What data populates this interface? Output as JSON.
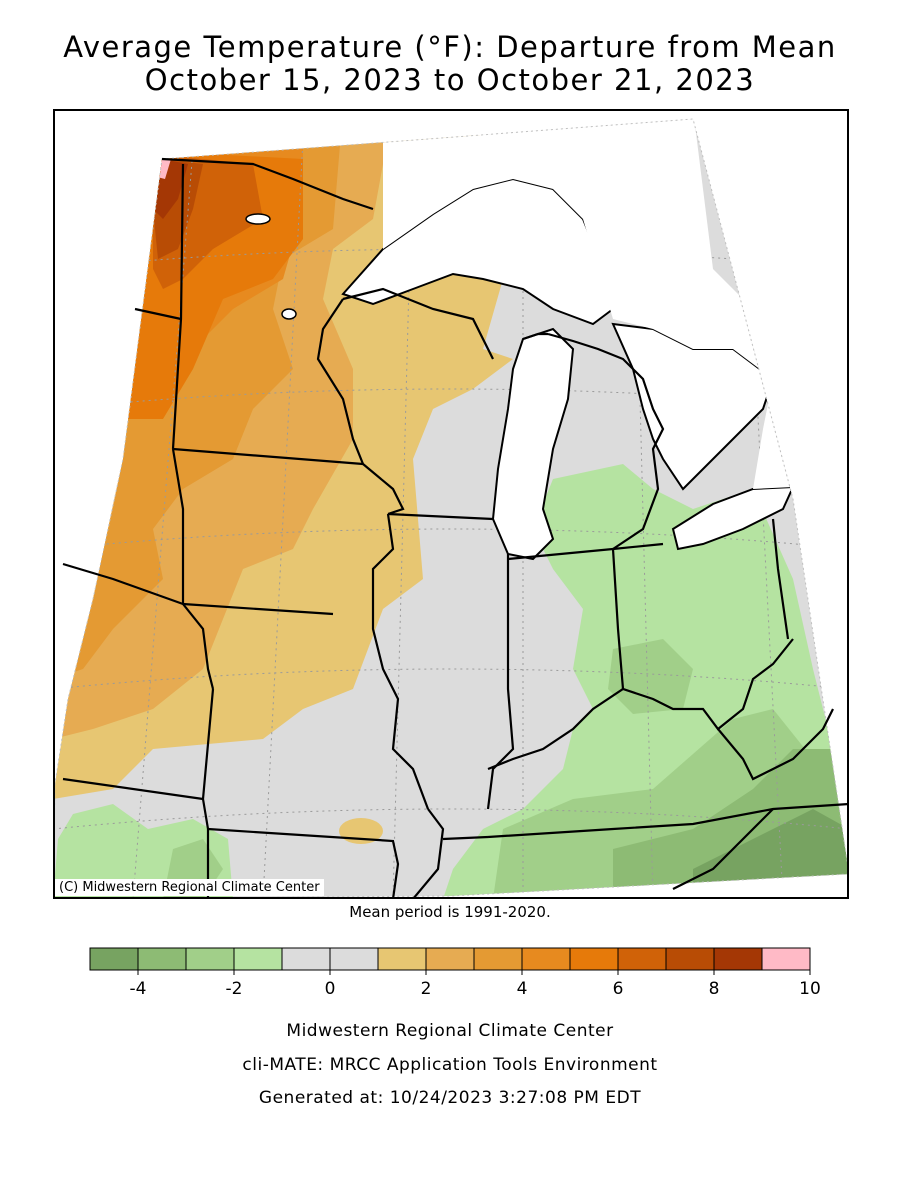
{
  "title_line1": "Average Temperature (°F): Departure from Mean",
  "title_line2": "October 15, 2023 to October 21, 2023",
  "copyright": "(C) Midwestern Regional Climate Center",
  "mean_period": "Mean period is 1991-2020.",
  "legend": {
    "colors": [
      "#77a361",
      "#8dbb74",
      "#a1cf89",
      "#b5e3a1",
      "#dcdcdc",
      "#dcdcdc",
      "#e7c672",
      "#e6ab52",
      "#e49a33",
      "#e78a1f",
      "#e67a0a",
      "#d06208",
      "#b84c05",
      "#a43705",
      "#ffbac6"
    ],
    "tick_labels": [
      "-4",
      "-2",
      "0",
      "2",
      "4",
      "6",
      "8",
      "10"
    ]
  },
  "footer": {
    "line1": "Midwestern Regional Climate Center",
    "line2": "cli-MATE: MRCC Application Tools Environment",
    "line3": "Generated at: 10/24/2023 3:27:08 PM EDT"
  }
}
